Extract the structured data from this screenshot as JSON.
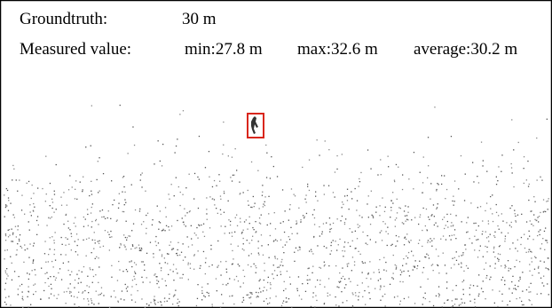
{
  "groundtruth": {
    "label": "Groundtruth:",
    "value": "30 m"
  },
  "measured": {
    "label": "Measured value:",
    "min": "min:27.8 m",
    "max": "max:32.6 m",
    "average": "average:30.2 m"
  }
}
